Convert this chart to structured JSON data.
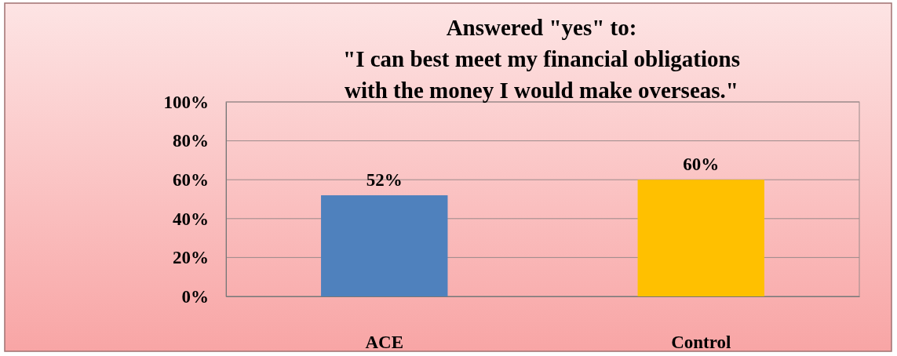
{
  "chart_data": {
    "type": "bar",
    "title": "Answered \"yes\" to:\n\"I can best meet my financial obligations\nwith the money I would make overseas.\"",
    "categories": [
      "ACE",
      "Control"
    ],
    "values": [
      52,
      60
    ],
    "colors": [
      "#4f81bd",
      "#ffc000"
    ],
    "ylim": [
      0,
      100
    ],
    "yticks": [
      {
        "value": 0,
        "label": "0%"
      },
      {
        "value": 20,
        "label": "20%"
      },
      {
        "value": 40,
        "label": "40%"
      },
      {
        "value": 60,
        "label": "60%"
      },
      {
        "value": 80,
        "label": "80%"
      },
      {
        "value": 100,
        "label": "100%"
      }
    ],
    "value_labels": [
      "52%",
      "60%"
    ],
    "grid": "y"
  }
}
